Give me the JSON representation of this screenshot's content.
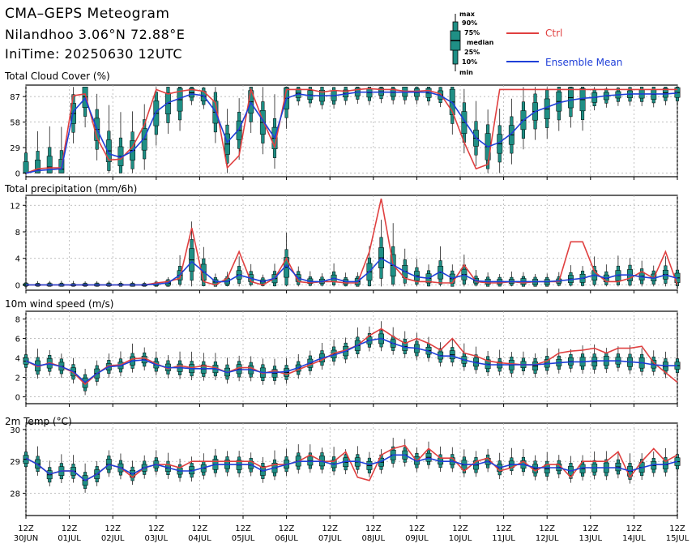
{
  "header": {
    "title": "CMA–GEPS Meteogram",
    "location": "Nilandhoo 3.06°N 72.88°E",
    "init": "IniTime: 20250630 12UTC"
  },
  "legend": {
    "box_labels": [
      "max",
      "90%",
      "75%",
      "median",
      "25%",
      "10%",
      "min"
    ],
    "ctrl_label": "Ctrl",
    "mean_label": "Ensemble Mean",
    "ctrl_color": "#e04040",
    "mean_color": "#1f3fd8",
    "box_color": "#1f8f85"
  },
  "chart_data": [
    {
      "type": "box",
      "title": "Total Cloud Cover (%)",
      "yticks": [
        0,
        29,
        58,
        87
      ],
      "ylim": [
        -4,
        100
      ],
      "ctrl": [
        0,
        5,
        6,
        6,
        88,
        90,
        40,
        15,
        16,
        30,
        55,
        95,
        90,
        93,
        95,
        93,
        80,
        6,
        20,
        95,
        60,
        30,
        95,
        95,
        95,
        92,
        94,
        93,
        95,
        96,
        95,
        95,
        93,
        93,
        94,
        90,
        70,
        35,
        5,
        10,
        95,
        95,
        95,
        95,
        95,
        95,
        95,
        95,
        95,
        95,
        95,
        95,
        95,
        95,
        95,
        95
      ],
      "mean": [
        0,
        3,
        4,
        5,
        70,
        85,
        50,
        22,
        18,
        25,
        40,
        70,
        80,
        85,
        90,
        88,
        70,
        35,
        50,
        80,
        60,
        40,
        85,
        90,
        88,
        88,
        88,
        90,
        92,
        92,
        92,
        92,
        92,
        92,
        92,
        88,
        80,
        60,
        40,
        30,
        35,
        45,
        60,
        70,
        75,
        80,
        83,
        85,
        86,
        88,
        89,
        90,
        90,
        90,
        90,
        91
      ]
    },
    {
      "type": "box",
      "title": "Total precipitation (mm/6h)",
      "yticks": [
        0,
        4,
        8,
        12
      ],
      "ylim": [
        -0.8,
        13.5
      ],
      "ctrl": [
        0,
        0,
        0,
        0,
        0,
        0,
        0,
        0,
        0,
        0,
        0,
        0.3,
        0.5,
        1,
        8.6,
        0.5,
        0,
        1,
        5,
        0.5,
        0,
        1,
        4,
        0.5,
        0.3,
        0.5,
        0.5,
        0.3,
        0.3,
        5,
        13,
        3,
        1,
        0.5,
        0.5,
        0.3,
        0.3,
        3,
        0.5,
        0.3,
        0.3,
        0.5,
        0.3,
        0.5,
        0.5,
        0.5,
        6.5,
        6.5,
        2,
        0.5,
        0.5,
        1,
        2,
        1,
        5,
        0
      ],
      "mean": [
        0,
        0,
        0,
        0,
        0,
        0,
        0,
        0,
        0,
        0,
        0,
        0.1,
        0.3,
        1.5,
        3.5,
        2,
        0.5,
        0.5,
        1.5,
        1,
        0.5,
        1,
        3,
        1,
        0.5,
        0.5,
        1,
        0.5,
        0.5,
        2,
        4,
        3,
        2,
        1.2,
        1,
        2,
        1,
        1.5,
        0.6,
        0.5,
        0.5,
        0.5,
        0.5,
        0.5,
        0.5,
        0.6,
        0.8,
        1,
        1.5,
        1,
        1.5,
        1.5,
        1.2,
        1,
        1.5,
        1
      ]
    },
    {
      "type": "box",
      "title": "10m wind speed (m/s)",
      "yticks": [
        0,
        2,
        4,
        6,
        8
      ],
      "ylim": [
        -0.7,
        8.8
      ],
      "ctrl": [
        3.7,
        3.1,
        3.5,
        3.1,
        2.5,
        1.3,
        2.4,
        3.2,
        3.3,
        3.9,
        4,
        3.4,
        2.9,
        3.2,
        3,
        3.2,
        3,
        2.5,
        3,
        3,
        2.4,
        2.7,
        2.3,
        2.8,
        3.3,
        3.8,
        4.5,
        4.8,
        5.3,
        6.3,
        7,
        6.2,
        5.5,
        6,
        5.5,
        4.8,
        6,
        4.5,
        4.2,
        3.7,
        3.5,
        3.4,
        3.3,
        3.3,
        3.7,
        4.5,
        4.7,
        4.8,
        5,
        4.5,
        5,
        5,
        5.2,
        3.5,
        2.5,
        1.5
      ],
      "mean": [
        3.7,
        3.2,
        3.4,
        3.1,
        2.6,
        1.5,
        2.4,
        3.1,
        3.2,
        3.7,
        3.8,
        3.3,
        3,
        3,
        2.9,
        2.9,
        2.9,
        2.5,
        2.8,
        2.8,
        2.5,
        2.5,
        2.6,
        3,
        3.5,
        4,
        4.3,
        4.7,
        5.3,
        5.8,
        6,
        5.5,
        5.1,
        5,
        4.7,
        4.2,
        4.2,
        3.8,
        3.5,
        3.3,
        3.3,
        3.3,
        3.3,
        3.3,
        3.4,
        3.5,
        3.6,
        3.6,
        3.7,
        3.7,
        3.7,
        3.6,
        3.5,
        3.3,
        3.2,
        3.2
      ]
    },
    {
      "type": "box",
      "title": "2m Temp (°C)",
      "yticks": [
        28,
        29,
        30
      ],
      "ylim": [
        27.3,
        30.2
      ],
      "ctrl": [
        29.1,
        28.9,
        28.6,
        28.7,
        28.7,
        28.4,
        28.6,
        28.9,
        28.8,
        28.5,
        28.8,
        28.9,
        28.9,
        28.8,
        29,
        29,
        29,
        29,
        29,
        29,
        28.8,
        28.9,
        28.9,
        29,
        29.2,
        29,
        29,
        29.3,
        28.5,
        28.4,
        29.2,
        29.4,
        29.5,
        29,
        29.4,
        29.1,
        29.1,
        28.7,
        29,
        29.1,
        28.7,
        28.8,
        29,
        28.7,
        28.9,
        28.9,
        28.5,
        29,
        29,
        29,
        29.3,
        28.5,
        29,
        29.4,
        29,
        29.2
      ],
      "mean": [
        29.1,
        28.9,
        28.6,
        28.7,
        28.7,
        28.4,
        28.6,
        28.9,
        28.8,
        28.6,
        28.8,
        28.9,
        28.8,
        28.7,
        28.7,
        28.8,
        28.9,
        28.9,
        28.9,
        28.9,
        28.7,
        28.8,
        28.9,
        29,
        29,
        29,
        28.9,
        29,
        29,
        28.9,
        29,
        29.2,
        29.2,
        29,
        29.1,
        29,
        29,
        28.9,
        28.9,
        29,
        28.8,
        28.9,
        28.9,
        28.8,
        28.8,
        28.8,
        28.7,
        28.8,
        28.8,
        28.8,
        28.8,
        28.7,
        28.8,
        28.9,
        28.9,
        29
      ]
    }
  ],
  "xaxis": {
    "hours": [
      "12Z",
      "12Z",
      "12Z",
      "12Z",
      "12Z",
      "12Z",
      "12Z",
      "12Z",
      "12Z",
      "12Z",
      "12Z",
      "12Z",
      "12Z",
      "12Z",
      "12Z",
      "12Z"
    ],
    "dates": [
      "30JUN",
      "01JUL",
      "02JUL",
      "03JUL",
      "04JUL",
      "05JUL",
      "06JUL",
      "07JUL",
      "08JUL",
      "09JUL",
      "10JUL",
      "11JUL",
      "12JUL",
      "13JUL",
      "14JUL",
      "15JUL"
    ]
  }
}
